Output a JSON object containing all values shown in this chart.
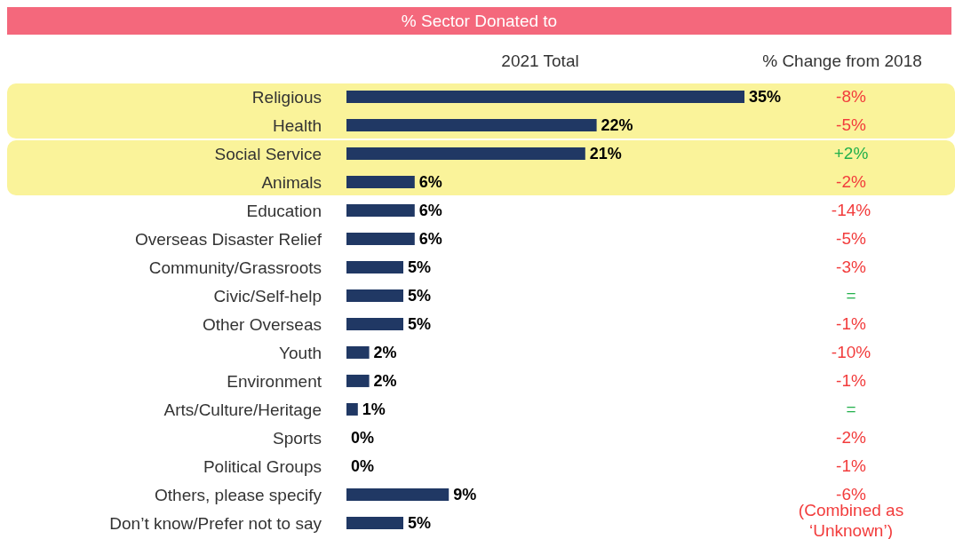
{
  "chart_data": {
    "type": "bar",
    "orientation": "horizontal",
    "title": "% Sector Donated to",
    "categories": [
      "Religious",
      "Health",
      "Social Service",
      "Animals",
      "Education",
      "Overseas Disaster Relief",
      "Community/Grassroots",
      "Civic/Self-help",
      "Other Overseas",
      "Youth",
      "Environment",
      "Arts/Culture/Heritage",
      "Sports",
      "Political Groups",
      "Others, please specify",
      "Don’t know/Prefer not to say"
    ],
    "values": [
      35,
      22,
      21,
      6,
      6,
      6,
      5,
      5,
      5,
      2,
      2,
      1,
      0,
      0,
      9,
      5
    ],
    "value_labels": [
      "35%",
      "22%",
      "21%",
      "6%",
      "6%",
      "6%",
      "5%",
      "5%",
      "5%",
      "2%",
      "2%",
      "1%",
      "0%",
      "0%",
      "9%",
      "5%"
    ],
    "color": "#203864",
    "bands": [
      {
        "axis": "y",
        "from": "Religious",
        "to": "Health",
        "color": "#faf39a"
      },
      {
        "axis": "y",
        "from": "Social Service",
        "to": "Animals",
        "color": "#faf39a"
      }
    ],
    "annotations": [
      "2021 Total",
      "% Change from 2018",
      "-8%",
      "-5%",
      "+2%",
      "-2%",
      "-14%",
      "-5%",
      "-3%",
      "=",
      "-1%",
      "-10%",
      "-1%",
      "=",
      "-2%",
      "-1%",
      "-6%",
      "(Combined as ‘Unknown’)"
    ]
  }
}
